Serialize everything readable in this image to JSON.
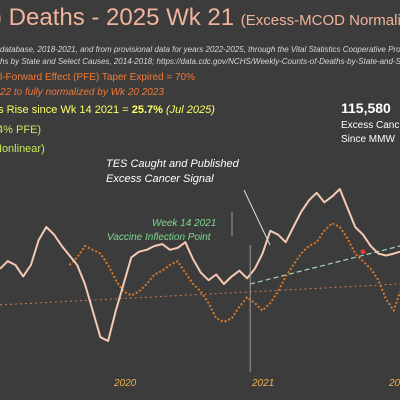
{
  "title": {
    "main": ") Deaths - 2025 Wk 21",
    "sub": "(Excess-MCOD  Normaliz"
  },
  "source_lines": [
    "database, 2018-2021, and from provisional data for years 2022-2025, through the Vital Statistics Cooperative Program; h",
    "hs by State and Select Causes, 2014-2018; https://data.cdc.gov/NCHS/Weekly-Counts-of-Deaths-by-State-and-Select-Cau"
  ],
  "notes": {
    "pfe": "l-Forward Effect (PFE) Taper Expired =  70%",
    "normalized": "22 to fully normalized  by Wk 20 2023",
    "rise_prefix": "es Rise since Wk 14 2021 = ",
    "rise_value": "25.7%",
    "rise_suffix": "(Jul 2025)",
    "pfe_pct": ".4% PFE)",
    "nonlinear": "Nonlinear)"
  },
  "callout": {
    "number": "115,580",
    "line1": "Excess Canc",
    "line2": "Since MMW"
  },
  "annotations": {
    "tes_line1": "TES Caught and Published",
    "tes_line2": "Excess Cancer Signal",
    "wk14_line1": "Week 14 2021",
    "wk14_line2": "Vaccine Inflection Point"
  },
  "colors": {
    "background": "#3c3c3c",
    "title": "#f0b49a",
    "main_series": "#f5c9b3",
    "dotted_series": "#d97a2a",
    "trend_dashed": "#a6d4c4",
    "baseline_dotted": "#c87a5a",
    "inflection_line": "#9a9a9a",
    "marker": "#e53935",
    "x_tick": "#f0b049"
  },
  "chart_data": {
    "type": "line",
    "xlabel": "",
    "ylabel": "",
    "x_tick_labels": [
      "2020",
      "2021",
      "20"
    ],
    "x_week_range": [
      1,
      260
    ],
    "y_range": [
      0,
      100
    ],
    "series": [
      {
        "x": [
          1,
          6,
          11,
          16,
          21,
          26,
          31,
          36,
          41,
          46,
          51,
          56,
          61,
          66,
          71,
          76,
          81,
          86,
          91,
          96,
          101,
          106,
          111,
          116,
          121,
          126,
          131,
          136,
          141,
          146,
          151,
          156,
          161,
          166,
          171,
          176,
          181,
          186,
          191,
          196,
          201,
          206,
          211,
          216,
          221,
          226,
          231,
          236,
          241,
          246,
          251,
          256,
          260
        ],
        "y": [
          48,
          52,
          50,
          44,
          50,
          63,
          70,
          66,
          60,
          55,
          50,
          40,
          26,
          12,
          10,
          26,
          40,
          54,
          57,
          58,
          60,
          61,
          58,
          59,
          62,
          53,
          46,
          42,
          45,
          40,
          44,
          47,
          43,
          48,
          56,
          68,
          66,
          62,
          70,
          78,
          84,
          88,
          83,
          86,
          90,
          80,
          70,
          66,
          60,
          56,
          55,
          56,
          57
        ]
      },
      {
        "x": [
          46,
          51,
          56,
          61,
          66,
          71,
          76,
          81,
          86,
          91,
          96,
          101,
          106,
          111,
          116,
          121,
          126,
          131,
          136,
          141,
          146,
          151,
          156,
          161,
          166,
          171,
          176,
          181,
          186,
          191,
          196,
          201,
          206,
          211,
          216,
          221,
          226,
          231,
          236,
          241,
          246,
          251,
          256,
          260
        ],
        "y": [
          50,
          54,
          60,
          58,
          56,
          50,
          42,
          36,
          34,
          36,
          40,
          45,
          47,
          50,
          52,
          46,
          40,
          36,
          30,
          22,
          20,
          22,
          28,
          33,
          30,
          26,
          30,
          36,
          44,
          50,
          56,
          60,
          62,
          68,
          72,
          70,
          64,
          56,
          52,
          48,
          42,
          32,
          26,
          36
        ]
      },
      {
        "x": [
          163,
          260
        ],
        "y": [
          40,
          60
        ]
      },
      {
        "x": [
          1,
          260
        ],
        "y": [
          29,
          40
        ]
      }
    ],
    "vertical_lines": [
      {
        "x": 163,
        "label": "Week 14 2021"
      }
    ],
    "markers": [
      {
        "x": 236,
        "y": 57
      }
    ]
  }
}
